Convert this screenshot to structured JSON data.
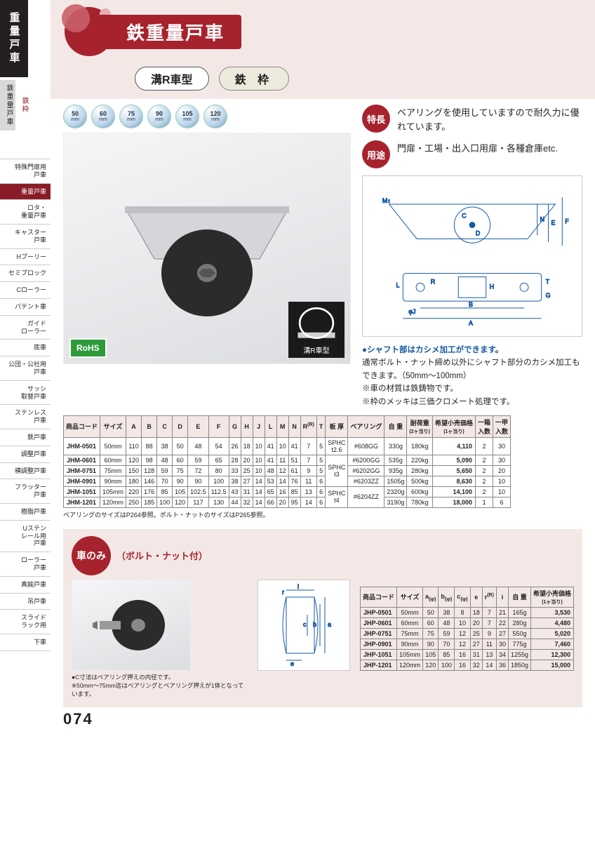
{
  "sidebar": {
    "tab": "重量戸車",
    "cat_left": "鉄重量戸車",
    "cat_right": "鉄枠",
    "items": [
      "特殊門扉用\n戸車",
      "重量戸車",
      "ロタ・\n重量戸車",
      "キャスター\n戸車",
      "Hプーリー",
      "セミプロック",
      "Cローラー",
      "パテント車",
      "ガイド\nローラー",
      "底車",
      "公団・公社用\n戸車",
      "サッシ\n取替戸車",
      "ステンレス\n戸車",
      "鉄戸車",
      "調整戸車",
      "横調整戸車",
      "フラッター\n戸車",
      "樹脂戸車",
      "Uステン\nレール用\n戸車",
      "ローラー\n戸車",
      "真鍮戸車",
      "吊戸車",
      "スライド\nラック用",
      "下車"
    ],
    "active_index": 1
  },
  "header": {
    "title": "鉄重量戸車",
    "pill1": "溝R車型",
    "pill2": "鉄 枠"
  },
  "size_chips": [
    "50",
    "60",
    "75",
    "90",
    "105",
    "120"
  ],
  "size_chip_unit": "mm",
  "badges": {
    "rohs": "RoHS",
    "groove": "溝R車型"
  },
  "features": {
    "label1": "特長",
    "text1": "ベアリングを使用していますので耐久力に優れています。",
    "label2": "用途",
    "text2": "門扉・工場・出入口用扉・各種倉庫etc."
  },
  "notes": {
    "blue": "●シャフト部はカシメ加工ができます。",
    "n1": "通常ボルト・ナット締め以外にシャフト部分のカシメ加工もできます。（50mm～100mm）",
    "n2": "※車の材質は鉄鋳物です。",
    "n3": "※枠のメッキは三価クロメート処理です。"
  },
  "table1": {
    "headers": [
      "商品コード",
      "サイズ",
      "A",
      "B",
      "C",
      "D",
      "E",
      "F",
      "G",
      "H",
      "J",
      "L",
      "M",
      "N",
      "R<sup>(R)</sup>",
      "T",
      "板 厚",
      "ベアリング",
      "自 重",
      "耐荷重<br><span style='font-size:7px'>(2ヶ当り)</span>",
      "希望小売価格<br><span style='font-size:7px'>(1ヶ当り)</span>",
      "一箱<br>入数",
      "一甲<br>入数"
    ],
    "thick_groups": [
      {
        "label": "SPHC\nt2.6",
        "span": 1
      },
      {
        "label": "SPHC\nt3",
        "span": 3
      },
      {
        "label": "SPHC\nt4",
        "span": 2
      }
    ],
    "bearing_groups": [
      {
        "label": "#608GG",
        "span": 1
      },
      {
        "label": "#6200GG",
        "span": 1
      },
      {
        "label": "#6202GG",
        "span": 1
      },
      {
        "label": "#6203ZZ",
        "span": 1
      },
      {
        "label": "#6204ZZ",
        "span": 2
      }
    ],
    "rows": [
      [
        "JHM-0501",
        "50mm",
        "110",
        "88",
        "38",
        "50",
        "48",
        "54",
        "26",
        "18",
        "10",
        "41",
        "10",
        "41",
        "7",
        "5",
        "330g",
        "180kg",
        "4,110",
        "2",
        "30"
      ],
      [
        "JHM-0601",
        "60mm",
        "120",
        "98",
        "48",
        "60",
        "59",
        "65",
        "28",
        "20",
        "10",
        "41",
        "11",
        "51",
        "7",
        "5",
        "535g",
        "220kg",
        "5,090",
        "2",
        "30"
      ],
      [
        "JHM-0751",
        "75mm",
        "150",
        "128",
        "59",
        "75",
        "72",
        "80",
        "33",
        "25",
        "10",
        "48",
        "12",
        "61",
        "9",
        "5",
        "935g",
        "280kg",
        "5,650",
        "2",
        "20"
      ],
      [
        "JHM-0901",
        "90mm",
        "180",
        "146",
        "70",
        "90",
        "90",
        "100",
        "38",
        "27",
        "14",
        "53",
        "14",
        "76",
        "11",
        "6",
        "1505g",
        "500kg",
        "8,630",
        "2",
        "10"
      ],
      [
        "JHM-1051",
        "105mm",
        "220",
        "176",
        "85",
        "105",
        "102.5",
        "112.5",
        "43",
        "31",
        "14",
        "65",
        "16",
        "85",
        "13",
        "6",
        "2320g",
        "600kg",
        "14,100",
        "2",
        "10"
      ],
      [
        "JHM-1201",
        "120mm",
        "250",
        "185",
        "100",
        "120",
        "117",
        "130",
        "44",
        "32",
        "14",
        "66",
        "20",
        "95",
        "14",
        "6",
        "3190g",
        "780kg",
        "18,000",
        "1",
        "6"
      ]
    ],
    "footnote": "ベアリングのサイズはP264参照。ボルト・ナットのサイズはP265参照。"
  },
  "section2": {
    "circle": "車のみ",
    "sub": "（ボルト・ナット付）",
    "note1": "●C寸法はベアリング押えの内径です。",
    "note2": "※50mm～75mm迄はベアリングとベアリング押えが1体となっています。"
  },
  "table2": {
    "headers": [
      "商品コード",
      "サイズ",
      "a<sub>(φ)</sub>",
      "b<sub>(φ)</sub>",
      "c<sub>(φ)</sub>",
      "e",
      "r<sup>(R)</sup>",
      "i",
      "自 重",
      "希望小売価格<br><span style='font-size:7px'>(1ヶ当り)</span>"
    ],
    "rows": [
      [
        "JHP-0501",
        "50mm",
        "50",
        "38",
        "8",
        "18",
        "7",
        "21",
        "165g",
        "3,530"
      ],
      [
        "JHP-0601",
        "60mm",
        "60",
        "48",
        "10",
        "20",
        "7",
        "22",
        "280g",
        "4,480"
      ],
      [
        "JHP-0751",
        "75mm",
        "75",
        "59",
        "12",
        "25",
        "9",
        "27",
        "550g",
        "5,020"
      ],
      [
        "JHP-0901",
        "90mm",
        "90",
        "70",
        "12",
        "27",
        "11",
        "30",
        "775g",
        "7,460"
      ],
      [
        "JHP-1051",
        "105mm",
        "105",
        "85",
        "16",
        "31",
        "13",
        "34",
        "1255g",
        "12,300"
      ],
      [
        "JHP-1201",
        "120mm",
        "120",
        "100",
        "16",
        "32",
        "14",
        "36",
        "1850g",
        "15,000"
      ]
    ]
  },
  "page_number": "074"
}
